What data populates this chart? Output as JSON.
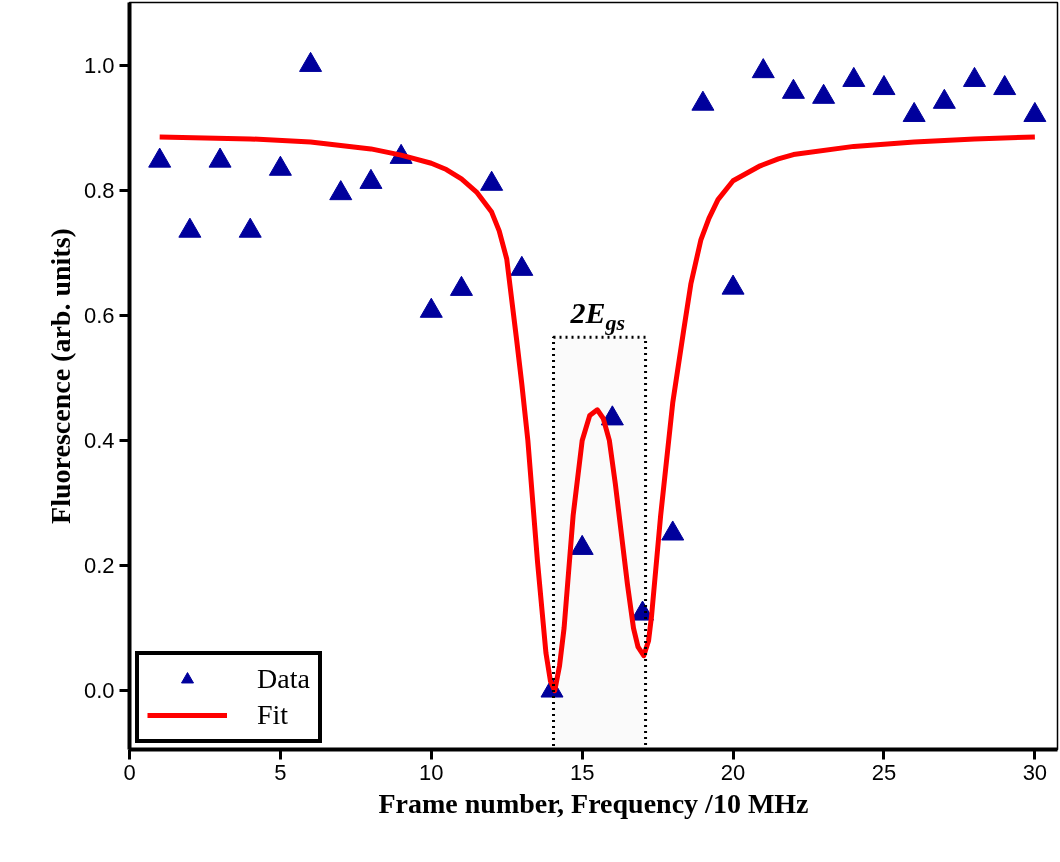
{
  "chart_data": {
    "type": "scatter",
    "xlabel": "Frame number, Frequency /10 MHz",
    "ylabel": "Fluorescence (arb. units)",
    "xlim": [
      0,
      30.75
    ],
    "ylim": [
      -0.094,
      1.1
    ],
    "xticks": [
      0,
      5,
      10,
      15,
      20,
      25,
      30
    ],
    "yticks": [
      {
        "value": 0,
        "label": "0.0"
      },
      {
        "value": 0.2,
        "label": "0.2"
      },
      {
        "value": 0.4,
        "label": "0.4"
      },
      {
        "value": 0.6,
        "label": "0.6"
      },
      {
        "value": 0.8,
        "label": "0.8"
      },
      {
        "value": 1,
        "label": "1.0"
      }
    ],
    "legend": "bottom left",
    "grid": false,
    "series": [
      {
        "name": "Data",
        "marker": "triangle",
        "color": "#00009c",
        "x": [
          1,
          2,
          3,
          4,
          5,
          6,
          7,
          8,
          9,
          10,
          11,
          12,
          13,
          14,
          15,
          16,
          17,
          18,
          19,
          20,
          21,
          22,
          23,
          24,
          25,
          26,
          27,
          28,
          29,
          30
        ],
        "values": [
          0.847,
          0.735,
          0.847,
          0.735,
          0.834,
          1.0,
          0.795,
          0.813,
          0.853,
          0.607,
          0.642,
          0.81,
          0.674,
          0.0,
          0.228,
          0.435,
          0.123,
          0.251,
          0.938,
          0.644,
          0.99,
          0.957,
          0.949,
          0.976,
          0.963,
          0.92,
          0.941,
          0.976,
          0.963,
          0.92
        ]
      },
      {
        "name": "Fit",
        "type": "line",
        "line_style": "solid",
        "color": "#ff0000",
        "x": [
          1,
          4,
          6,
          8,
          9,
          10,
          10.5,
          11,
          11.5,
          12,
          12.25,
          12.5,
          12.83,
          13.0,
          13.2,
          13.52,
          13.8,
          13.95,
          14.09,
          14.25,
          14.4,
          14.7,
          15.0,
          15.25,
          15.5,
          15.7,
          15.9,
          16.1,
          16.3,
          16.5,
          16.7,
          16.85,
          17.04,
          17.2,
          17.3,
          17.6,
          18.0,
          18.36,
          18.6,
          18.93,
          19.2,
          19.5,
          20,
          20.9,
          21.5,
          22,
          24,
          26,
          28,
          30
        ],
        "values": [
          0.885,
          0.882,
          0.877,
          0.866,
          0.856,
          0.843,
          0.833,
          0.818,
          0.797,
          0.765,
          0.735,
          0.69,
          0.56,
          0.49,
          0.4,
          0.206,
          0.06,
          0.015,
          0.0,
          0.04,
          0.1,
          0.28,
          0.4,
          0.44,
          0.449,
          0.435,
          0.4,
          0.33,
          0.25,
          0.17,
          0.1,
          0.07,
          0.056,
          0.08,
          0.12,
          0.28,
          0.46,
          0.575,
          0.65,
          0.72,
          0.755,
          0.785,
          0.815,
          0.839,
          0.85,
          0.857,
          0.87,
          0.877,
          0.882,
          0.885
        ]
      }
    ],
    "bands": [
      {
        "axis": "x",
        "from": 14.05,
        "to": 17.1,
        "label": "2E$_{gs}$",
        "color": "#000000"
      }
    ]
  }
}
